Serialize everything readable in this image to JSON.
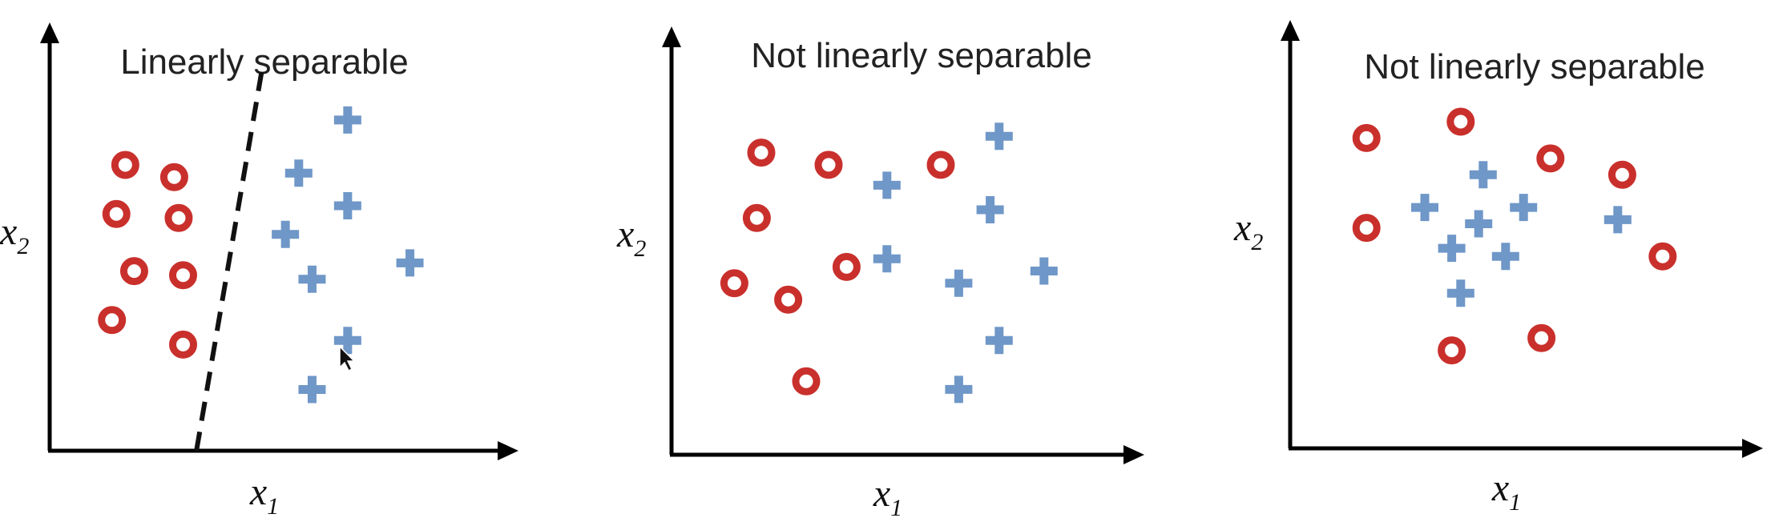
{
  "colors": {
    "circle": "#c9302c",
    "plus": "#6f97c8",
    "axis": "#000000",
    "boundary": "#111111"
  },
  "x_axis_label": "x",
  "x_axis_subscript": "1",
  "y_axis_label": "x",
  "y_axis_subscript": "2",
  "panels": [
    {
      "title": "Linearly separable",
      "boundary": {
        "style": "dashed",
        "points": [
          [
            0.33,
            0.0
          ],
          [
            0.48,
            0.95
          ]
        ]
      },
      "circles": [
        [
          0.17,
          0.7
        ],
        [
          0.28,
          0.67
        ],
        [
          0.15,
          0.58
        ],
        [
          0.29,
          0.57
        ],
        [
          0.19,
          0.44
        ],
        [
          0.3,
          0.43
        ],
        [
          0.14,
          0.32
        ],
        [
          0.3,
          0.26
        ]
      ],
      "pluses": [
        [
          0.67,
          0.81
        ],
        [
          0.56,
          0.68
        ],
        [
          0.67,
          0.6
        ],
        [
          0.53,
          0.53
        ],
        [
          0.81,
          0.46
        ],
        [
          0.59,
          0.42
        ],
        [
          0.67,
          0.27
        ],
        [
          0.59,
          0.15
        ]
      ]
    },
    {
      "title": "Not linearly separable",
      "circles": [
        [
          0.2,
          0.74
        ],
        [
          0.35,
          0.71
        ],
        [
          0.6,
          0.71
        ],
        [
          0.19,
          0.58
        ],
        [
          0.39,
          0.46
        ],
        [
          0.14,
          0.42
        ],
        [
          0.26,
          0.38
        ],
        [
          0.3,
          0.18
        ]
      ],
      "pluses": [
        [
          0.73,
          0.78
        ],
        [
          0.48,
          0.66
        ],
        [
          0.71,
          0.6
        ],
        [
          0.48,
          0.48
        ],
        [
          0.83,
          0.45
        ],
        [
          0.64,
          0.42
        ],
        [
          0.73,
          0.28
        ],
        [
          0.64,
          0.16
        ]
      ]
    },
    {
      "title": "Not linearly separable",
      "circles": [
        [
          0.38,
          0.8
        ],
        [
          0.17,
          0.76
        ],
        [
          0.58,
          0.71
        ],
        [
          0.74,
          0.67
        ],
        [
          0.17,
          0.54
        ],
        [
          0.83,
          0.47
        ],
        [
          0.36,
          0.24
        ],
        [
          0.56,
          0.27
        ]
      ],
      "pluses": [
        [
          0.43,
          0.67
        ],
        [
          0.3,
          0.59
        ],
        [
          0.52,
          0.59
        ],
        [
          0.42,
          0.55
        ],
        [
          0.73,
          0.56
        ],
        [
          0.36,
          0.49
        ],
        [
          0.48,
          0.47
        ],
        [
          0.38,
          0.38
        ]
      ]
    }
  ]
}
